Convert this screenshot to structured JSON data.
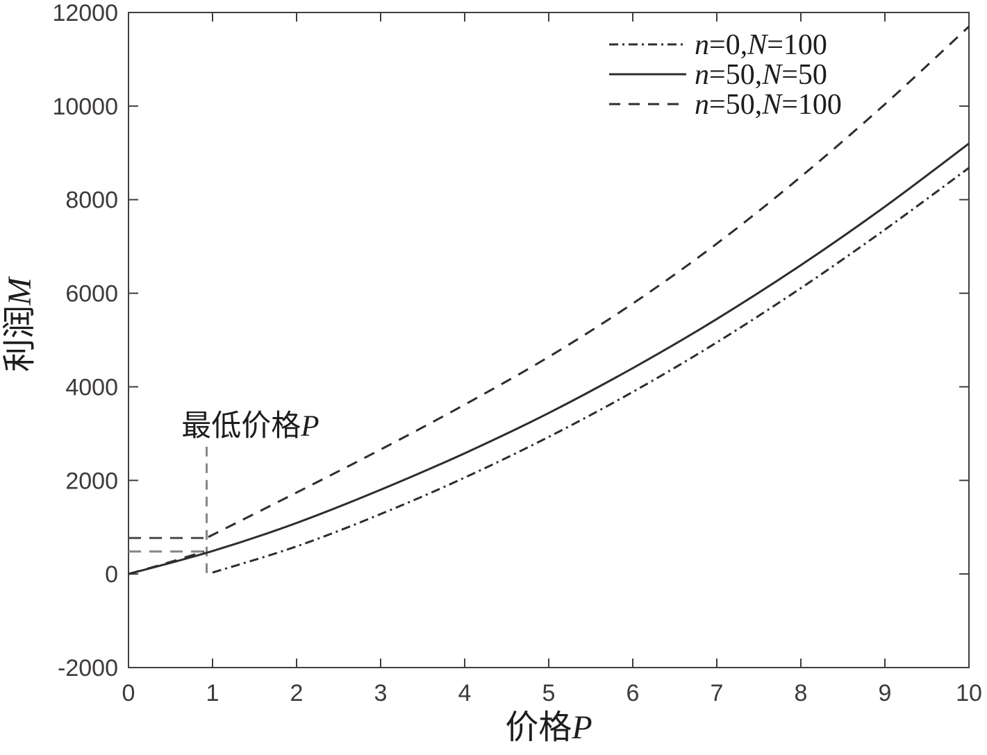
{
  "colors": {
    "line": "#2d2d2d",
    "axis": "#3e3e3e",
    "tick_text": "#3d3a39",
    "label_text": "#1d1d1d",
    "guide_dark": "#4a4a4a",
    "guide": "#868686",
    "background": "#ffffff"
  },
  "chart_data": {
    "type": "line",
    "title": "",
    "xlabel": "价格P",
    "ylabel": "利润M",
    "xlim": [
      0,
      10
    ],
    "ylim": [
      -2000,
      12000
    ],
    "xticks": [
      "0",
      "1",
      "2",
      "3",
      "4",
      "5",
      "6",
      "7",
      "8",
      "9",
      "10"
    ],
    "xtick_values": [
      0,
      1,
      2,
      3,
      4,
      5,
      6,
      7,
      8,
      9,
      10
    ],
    "yticks": [
      "-2000",
      "0",
      "2000",
      "4000",
      "6000",
      "8000",
      "10000",
      "12000"
    ],
    "ytick_values": [
      -2000,
      0,
      2000,
      4000,
      6000,
      8000,
      10000,
      12000
    ],
    "grid": false,
    "legend": {
      "position": "top-right",
      "entries": [
        {
          "label": "n=0,N=100",
          "style": "dash-dot"
        },
        {
          "label": "n=50,N=50",
          "style": "solid"
        },
        {
          "label": "n=50,N=100",
          "style": "dashed"
        }
      ]
    },
    "series": [
      {
        "name": "n=0,N=100",
        "style": "dash-dot",
        "segments": [
          {
            "x": [
              1,
              2,
              3,
              4,
              5,
              6,
              7,
              8,
              9,
              10
            ],
            "y": [
              30,
              590,
              1280,
              2060,
              2930,
              3890,
              4950,
              6110,
              7360,
              8680
            ]
          }
        ]
      },
      {
        "name": "n=50,N=50",
        "style": "solid",
        "segments": [
          {
            "x": [
              0,
              1,
              2,
              3,
              4,
              5,
              6,
              7,
              8,
              9,
              10
            ],
            "y": [
              0,
              490,
              1090,
              1800,
              2580,
              3440,
              4400,
              5450,
              6600,
              7850,
              9200
            ]
          }
        ]
      },
      {
        "name": "n=50,N=100",
        "style": "dashed",
        "segments": [
          {
            "x": [
              0,
              0.45,
              0.9
            ],
            "y": [
              0,
              230,
              480
            ]
          },
          {
            "x": [
              0.95,
              2,
              3,
              4,
              5,
              6,
              7,
              8,
              9,
              10
            ],
            "y": [
              790,
              1740,
              2660,
              3620,
              4640,
              5780,
              7060,
              8490,
              10040,
              11700
            ]
          }
        ]
      }
    ],
    "annotations": {
      "min_price_label": {
        "text": "最低价格P",
        "x": 1.45,
        "y": 2950
      },
      "vline": {
        "x": 0.93,
        "y0": 20,
        "y1": 2720
      },
      "hlines": [
        {
          "y": 770,
          "x0": 0,
          "x1": 0.92
        },
        {
          "y": 480,
          "x0": 0,
          "x1": 0.92
        }
      ]
    }
  }
}
